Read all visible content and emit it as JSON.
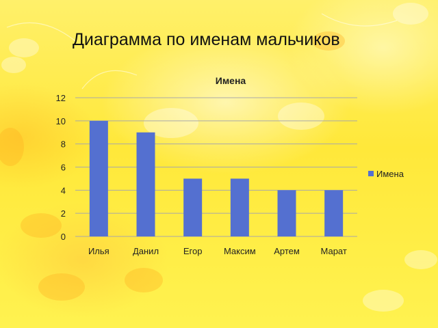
{
  "slide": {
    "title": "Диаграмма по именам мальчиков"
  },
  "colors": {
    "bar": "#5470d0",
    "gridline": "#a8a8a8",
    "axis_text": "#222222",
    "background": "#ffe83a"
  },
  "chart_data": {
    "type": "bar",
    "title": "Имена",
    "categories": [
      "Илья",
      "Данил",
      "Егор",
      "Максим",
      "Артем",
      "Марат"
    ],
    "series": [
      {
        "name": "Имена",
        "values": [
          10,
          9,
          5,
          5,
          4,
          4
        ]
      }
    ],
    "ylim": [
      0,
      12
    ],
    "yticks": [
      0,
      2,
      4,
      6,
      8,
      10,
      12
    ],
    "grid": true,
    "legend": "right"
  }
}
